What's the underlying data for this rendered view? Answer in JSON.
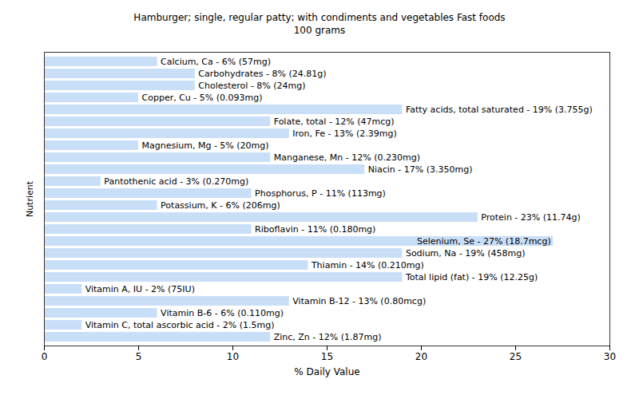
{
  "chart_data": {
    "type": "bar",
    "orientation": "horizontal",
    "title": "Hamburger; single, regular patty; with condiments and vegetables Fast foods",
    "subtitle": "100 grams",
    "x_label": "% Daily Value",
    "y_label": "Nutrient",
    "categories": [
      "Calcium, Ca - 6% (57mg)",
      "Carbohydrates - 8% (24.81g)",
      "Cholesterol - 8% (24mg)",
      "Copper, Cu - 5% (0.093mg)",
      "Fatty acids, total saturated - 19% (3.755g)",
      "Folate, total - 12% (47mcg)",
      "Iron, Fe - 13% (2.39mg)",
      "Magnesium, Mg - 5% (20mg)",
      "Manganese, Mn - 12% (0.230mg)",
      "Niacin - 17% (3.350mg)",
      "Pantothenic acid - 3% (0.270mg)",
      "Phosphorus, P - 11% (113mg)",
      "Potassium, K - 6% (206mg)",
      "Protein - 23% (11.74g)",
      "Riboflavin - 11% (0.180mg)",
      "Selenium, Se - 27% (18.7mcg)",
      "Sodium, Na - 19% (458mg)",
      "Thiamin - 14% (0.210mg)",
      "Total lipid (fat) - 19% (12.25g)",
      "Vitamin A, IU - 2% (75IU)",
      "Vitamin B-12 - 13% (0.80mcg)",
      "Vitamin B-6 - 6% (0.110mg)",
      "Vitamin C, total ascorbic acid - 2% (1.5mg)",
      "Zinc, Zn - 12% (1.87mg)"
    ],
    "values": [
      6,
      8,
      8,
      5,
      19,
      12,
      13,
      5,
      12,
      17,
      3,
      11,
      6,
      23,
      11,
      27,
      19,
      14,
      19,
      2,
      13,
      6,
      2,
      12
    ],
    "color": "#c9dff7",
    "xlim": [
      0,
      30
    ],
    "xticks": [
      0,
      5,
      10,
      15,
      20,
      25,
      30
    ],
    "grid": false,
    "tick_labels": "x"
  }
}
